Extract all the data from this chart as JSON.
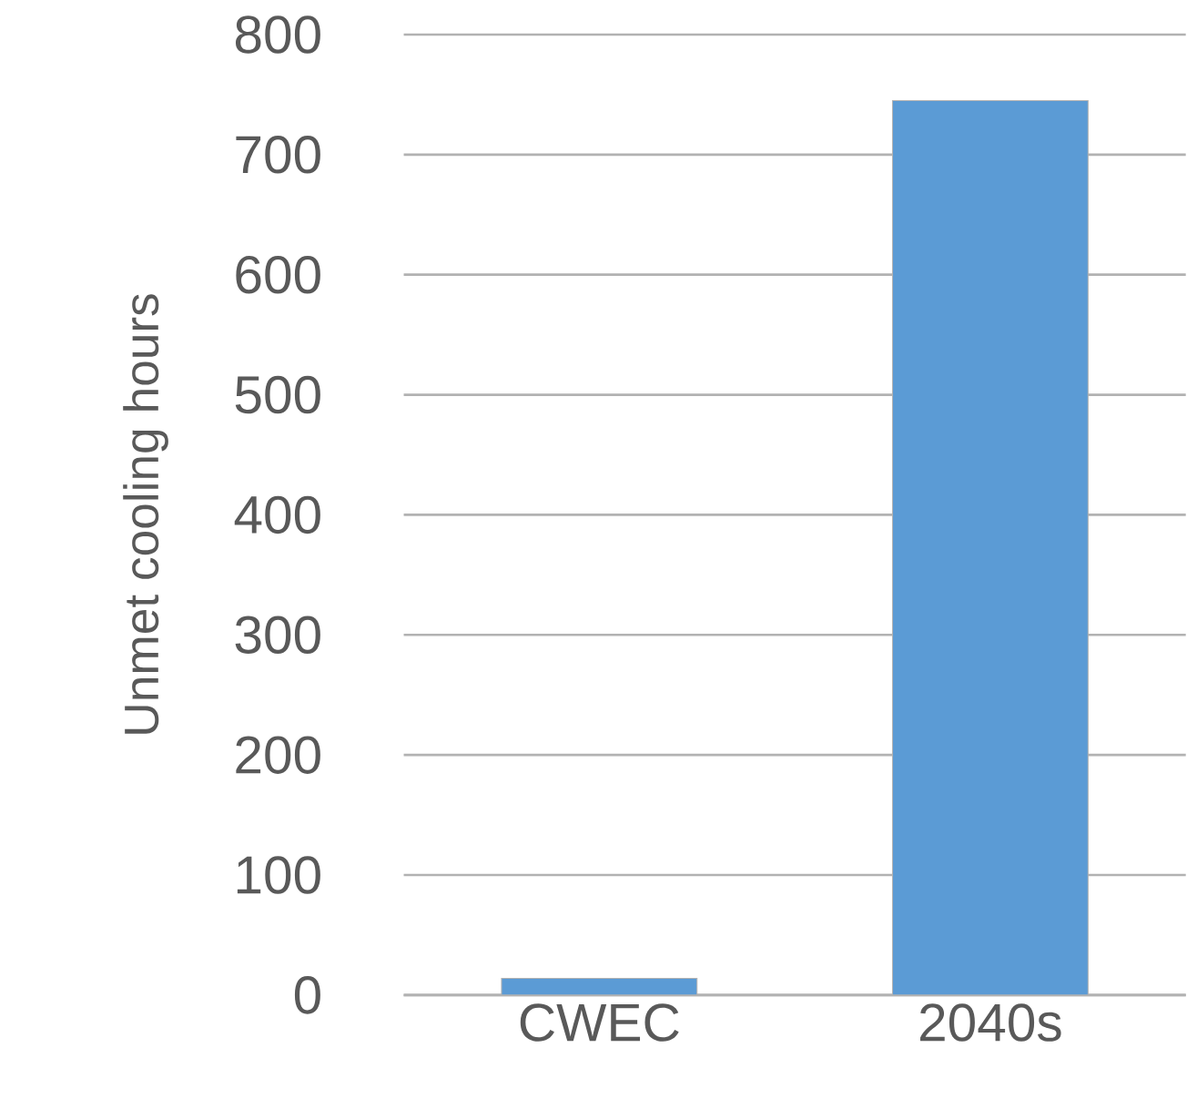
{
  "chart_data": {
    "type": "bar",
    "ylabel": "Unmet cooling hours",
    "categories": [
      "CWEC",
      "2040s"
    ],
    "values": [
      14,
      745
    ],
    "color": "#5b9bd5",
    "ylim": [
      0,
      800
    ],
    "yticks": [
      0,
      100,
      200,
      300,
      400,
      500,
      600,
      700,
      800
    ],
    "grid": "y"
  }
}
